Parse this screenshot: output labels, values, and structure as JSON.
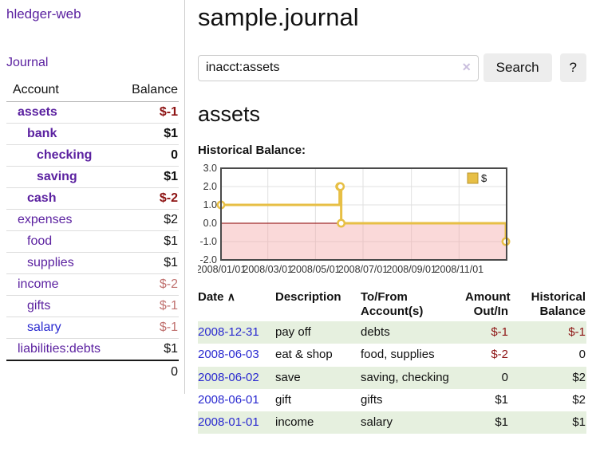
{
  "colors": {
    "link_purple": "#5b21a0",
    "link_blue": "#2a2ad0",
    "negative_strong": "#8d1313",
    "negative_soft": "#c0716f",
    "row_stripe_green": "#e6f0df",
    "chart_line_gold": "#E7BF45",
    "chart_negative_fill": "#f9d7d7",
    "chart_zero_line": "#8b0000"
  },
  "sidebar": {
    "app_title": "hledger-web",
    "nav": {
      "journal_label": "Journal"
    },
    "accounts_table": {
      "col_account": "Account",
      "col_balance": "Balance",
      "rows": [
        {
          "label": "assets",
          "indent": 1,
          "bold": true,
          "balance": "$-1",
          "balance_style": "neg-strong",
          "link_style": "purple"
        },
        {
          "label": "bank",
          "indent": 2,
          "bold": true,
          "balance": "$1",
          "balance_style": "normal",
          "link_style": "purple"
        },
        {
          "label": "checking",
          "indent": 3,
          "bold": true,
          "balance": "0",
          "balance_style": "normal",
          "link_style": "purple"
        },
        {
          "label": "saving",
          "indent": 3,
          "bold": true,
          "balance": "$1",
          "balance_style": "normal",
          "link_style": "purple"
        },
        {
          "label": "cash",
          "indent": 2,
          "bold": true,
          "balance": "$-2",
          "balance_style": "neg-strong",
          "link_style": "purple"
        },
        {
          "label": "expenses",
          "indent": 1,
          "bold": false,
          "balance": "$2",
          "balance_style": "normal",
          "link_style": "purple"
        },
        {
          "label": "food",
          "indent": 2,
          "bold": false,
          "balance": "$1",
          "balance_style": "normal",
          "link_style": "purple"
        },
        {
          "label": "supplies",
          "indent": 2,
          "bold": false,
          "balance": "$1",
          "balance_style": "normal",
          "link_style": "purple"
        },
        {
          "label": "income",
          "indent": 1,
          "bold": false,
          "balance": "$-2",
          "balance_style": "neg-soft",
          "link_style": "purple"
        },
        {
          "label": "gifts",
          "indent": 2,
          "bold": false,
          "balance": "$-1",
          "balance_style": "neg-soft",
          "link_style": "purple"
        },
        {
          "label": "salary",
          "indent": 2,
          "bold": false,
          "balance": "$-1",
          "balance_style": "neg-soft",
          "link_style": "blue"
        },
        {
          "label": "liabilities:debts",
          "indent": 1,
          "bold": false,
          "balance": "$1",
          "balance_style": "normal",
          "link_style": "purple"
        }
      ],
      "total": "0"
    }
  },
  "main": {
    "title": "sample.journal",
    "search": {
      "value": "inacct:assets",
      "clear_icon": "✕",
      "button_label": "Search",
      "help_label": "?"
    },
    "account_heading": "assets",
    "chart_heading": "Historical Balance:",
    "register": {
      "columns": {
        "date": "Date",
        "description": "Description",
        "accounts_line1": "To/From",
        "accounts_line2": "Account(s)",
        "amount_line1": "Amount",
        "amount_line2": "Out/In",
        "balance_line1": "Historical",
        "balance_line2": "Balance"
      },
      "sort_icon": "∧",
      "rows": [
        {
          "date": "2008-12-31",
          "description": "pay off",
          "accounts": "debts",
          "amount": "$-1",
          "amount_neg": true,
          "balance": "$-1",
          "balance_neg": true
        },
        {
          "date": "2008-06-03",
          "description": "eat & shop",
          "accounts": "food, supplies",
          "amount": "$-2",
          "amount_neg": true,
          "balance": "0",
          "balance_neg": false
        },
        {
          "date": "2008-06-02",
          "description": "save",
          "accounts": "saving, checking",
          "amount": "0",
          "amount_neg": false,
          "balance": "$2",
          "balance_neg": false
        },
        {
          "date": "2008-06-01",
          "description": "gift",
          "accounts": "gifts",
          "amount": "$1",
          "amount_neg": false,
          "balance": "$2",
          "balance_neg": false
        },
        {
          "date": "2008-01-01",
          "description": "income",
          "accounts": "salary",
          "amount": "$1",
          "amount_neg": false,
          "balance": "$1",
          "balance_neg": false
        }
      ]
    }
  },
  "chart_data": {
    "type": "line",
    "step": true,
    "title": "Historical Balance of assets",
    "series": [
      {
        "name": "$",
        "color": "#E7BF45",
        "points": [
          [
            "2008-01-01",
            1
          ],
          [
            "2008-06-01",
            2
          ],
          [
            "2008-06-02",
            2
          ],
          [
            "2008-06-03",
            0
          ],
          [
            "2008-12-31",
            -1
          ]
        ]
      }
    ],
    "x_range": [
      "2008-01-01",
      "2009-01-01"
    ],
    "x_tick_labels": [
      "2008/01/01",
      "2008/03/01",
      "2008/05/01",
      "2008/07/01",
      "2008/09/01",
      "2008/11/01"
    ],
    "y_ticks": [
      -2,
      -1,
      0,
      1,
      2,
      3
    ],
    "y_tick_labels": [
      "-2.0",
      "-1.0",
      "0.0",
      "1.0",
      "2.0",
      "3.0"
    ],
    "ylim": [
      -2,
      3
    ],
    "grid": true,
    "grid_color": "#e0e0e0",
    "border_color": "#4a4a4a",
    "negative_region_fill": "rgba(244,164,164,0.42)",
    "zero_line_color": "#8b0000",
    "legend_position": "top-right"
  }
}
